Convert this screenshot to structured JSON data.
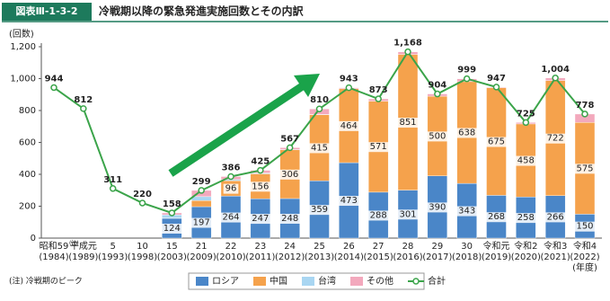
{
  "chart_data": {
    "type": "bar",
    "stacked": true,
    "badge": "図表Ⅲ-1-3-2",
    "title": "冷戦期以降の緊急発進実施回数とその内訳",
    "y_axis_label": "(回数)",
    "note": "(注) 冷戦期のピーク",
    "first_category_note": "(注)",
    "x_axis_unit": "(年度)",
    "categories": [
      "昭和59",
      "平成元",
      "5",
      "10",
      "15",
      "21",
      "22",
      "23",
      "24",
      "25",
      "26",
      "27",
      "28",
      "29",
      "30",
      "令和元",
      "令和2",
      "令和3",
      "令和4"
    ],
    "years": [
      "(1984)",
      "(1989)",
      "(1993)",
      "(1998)",
      "(2003)",
      "(2009)",
      "(2010)",
      "(2011)",
      "(2012)",
      "(2013)",
      "(2014)",
      "(2015)",
      "(2016)",
      "(2017)",
      "(2018)",
      "(2019)",
      "(2020)",
      "(2021)",
      "(2022)"
    ],
    "ylim": [
      0,
      1200
    ],
    "yticks": [
      0,
      200,
      400,
      600,
      800,
      {
        "value": 1000,
        "label": "1,000"
      },
      {
        "value": 1200,
        "label": "1,200"
      }
    ],
    "grid": false,
    "series": [
      {
        "name": "ロシア",
        "color": "#4a86c8",
        "type": "bar",
        "labels": true,
        "values": [
          null,
          null,
          null,
          null,
          124,
          197,
          264,
          247,
          248,
          359,
          473,
          288,
          301,
          390,
          343,
          268,
          258,
          266,
          150
        ]
      },
      {
        "name": "中国",
        "color": "#f5a24c",
        "type": "bar",
        "labels": true,
        "values": [
          null,
          null,
          null,
          null,
          2,
          38,
          96,
          156,
          306,
          415,
          464,
          571,
          851,
          500,
          638,
          675,
          458,
          722,
          575
        ]
      },
      {
        "name": "台湾",
        "color": "#a9d6f2",
        "type": "bar",
        "labels": false,
        "values": [
          null,
          null,
          null,
          null,
          20,
          25,
          7,
          5,
          1,
          1,
          0,
          0,
          0,
          0,
          0,
          0,
          0,
          0,
          0
        ]
      },
      {
        "name": "その他",
        "color": "#f3a9bd",
        "type": "bar",
        "labels": false,
        "values": [
          null,
          null,
          null,
          null,
          12,
          39,
          19,
          17,
          12,
          35,
          6,
          14,
          16,
          14,
          18,
          4,
          9,
          16,
          53
        ]
      },
      {
        "name": "合計",
        "color": "#3ba44a",
        "type": "line",
        "labels": true,
        "values": [
          944,
          812,
          311,
          220,
          158,
          299,
          386,
          425,
          567,
          810,
          943,
          873,
          1168,
          904,
          999,
          947,
          725,
          1004,
          778
        ],
        "value_labels": [
          "944",
          "812",
          "311",
          "220",
          "158",
          "299",
          "386",
          "425",
          "567",
          "810",
          "943",
          "873",
          "1,168",
          "904",
          "999",
          "947",
          "725",
          "1,004",
          "778"
        ]
      }
    ]
  }
}
